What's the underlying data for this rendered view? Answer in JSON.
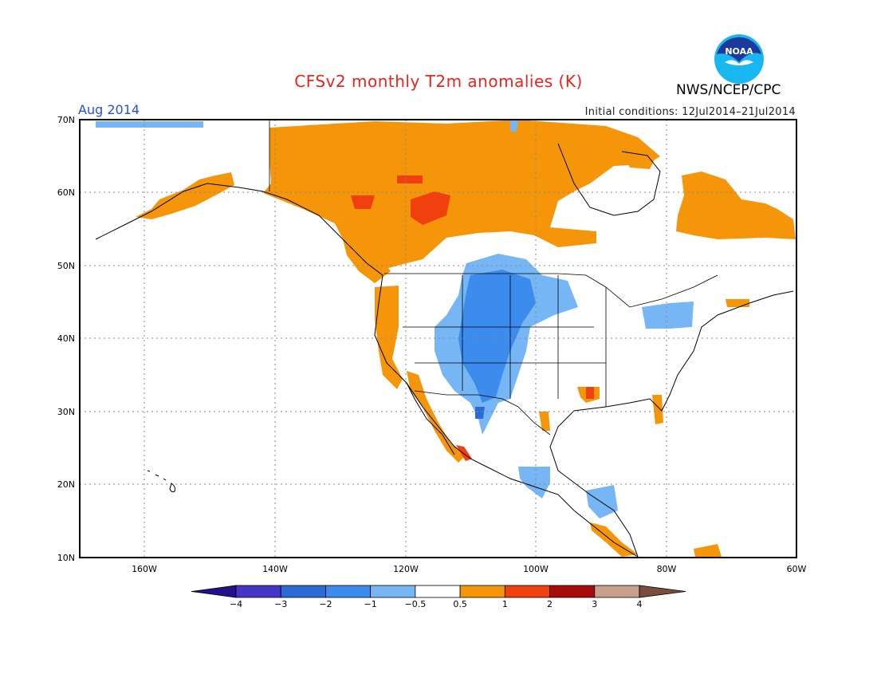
{
  "title": "CFSv2 monthly T2m anomalies (K)",
  "agency": "NWS/NCEP/CPC",
  "month": "Aug 2014",
  "initial_conditions": "Initial conditions: 12Jul2014–21Jul2014",
  "logo_text": "NOAA",
  "lat_labels": [
    "70N",
    "60N",
    "50N",
    "40N",
    "30N",
    "20N",
    "10N"
  ],
  "lon_labels": [
    "160W",
    "140W",
    "120W",
    "100W",
    "80W",
    "60W"
  ],
  "colorbar": {
    "labels": [
      "−4",
      "−3",
      "−2",
      "−1",
      "−0.5",
      "0.5",
      "1",
      "2",
      "3",
      "4"
    ],
    "colors": [
      "#23108c",
      "#4536c8",
      "#2c6bd6",
      "#3c8cee",
      "#76b6f4",
      "#ffffff",
      "#f5960a",
      "#f0400e",
      "#a80b0b",
      "#c8a08c",
      "#7a4e3c"
    ]
  },
  "colors": {
    "warm_05_1": "#f5960a",
    "warm_1_2": "#f0400e",
    "cool_05_1": "#76b6f4",
    "cool_1_2": "#3c8cee",
    "cool_2_3": "#2c6bd6"
  }
}
